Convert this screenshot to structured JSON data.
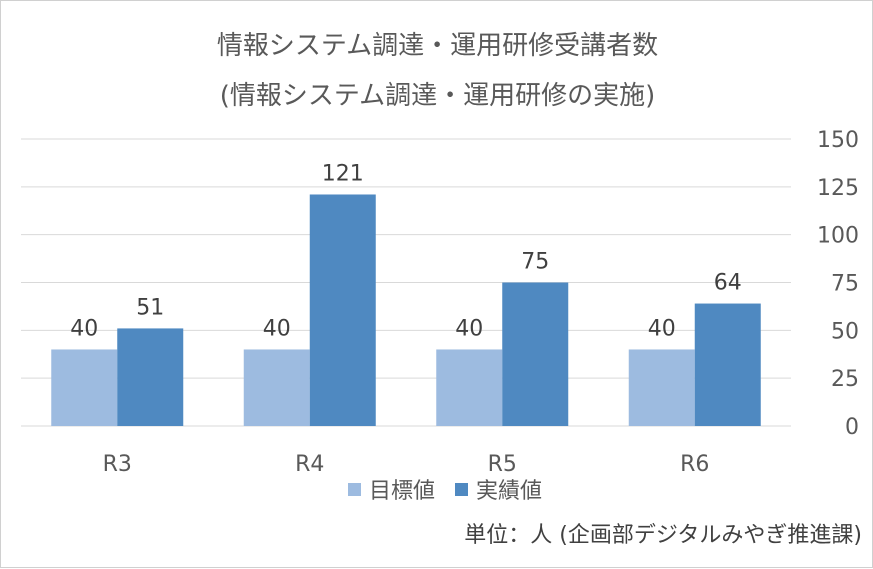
{
  "chart_data": {
    "type": "bar",
    "title": "情報システム調達・運用研修受講者数",
    "subtitle": "(情報システム調達・運用研修の実施)",
    "categories": [
      "R3",
      "R4",
      "R5",
      "R6"
    ],
    "series": [
      {
        "name": "目標値",
        "values": [
          40,
          40,
          40,
          40
        ],
        "color": "#9dbbe0"
      },
      {
        "name": "実績値",
        "values": [
          51,
          121,
          75,
          64
        ],
        "color": "#4f89c1"
      }
    ],
    "ylim": [
      0,
      150
    ],
    "yticks": [
      0,
      25,
      50,
      75,
      100,
      125,
      150
    ],
    "y_axis_side": "right",
    "grid": true,
    "legend_position": "bottom",
    "grid_color": "#d9d9d9"
  },
  "note": "単位：人 (企画部デジタルみやぎ推進課)"
}
